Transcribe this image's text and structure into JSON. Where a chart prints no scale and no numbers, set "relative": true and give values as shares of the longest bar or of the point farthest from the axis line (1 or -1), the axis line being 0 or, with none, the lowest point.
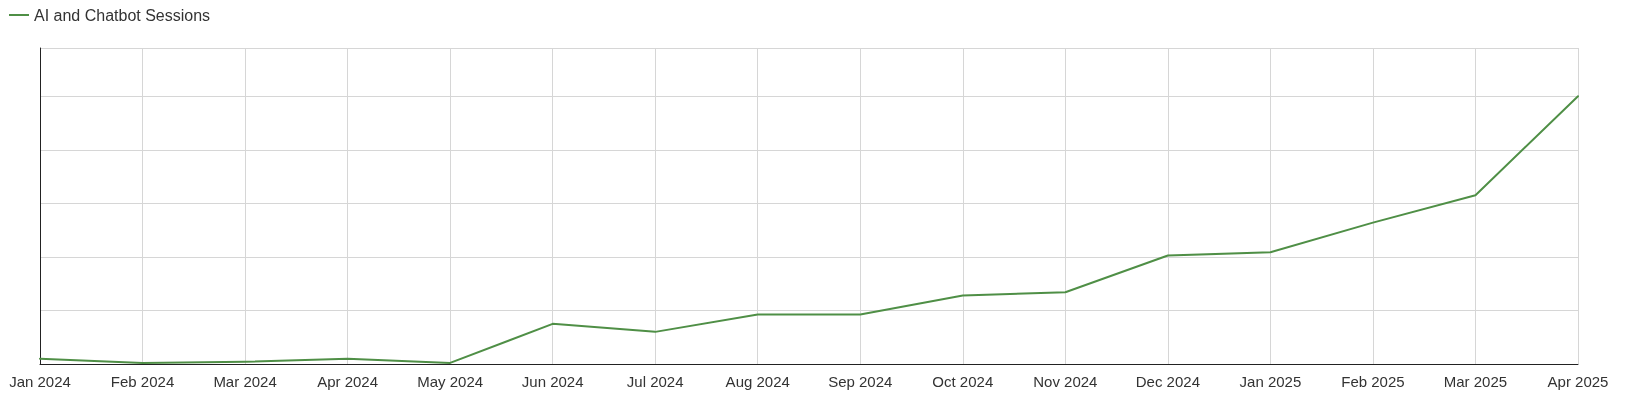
{
  "chart_data": {
    "type": "line",
    "relative": true,
    "grid": true,
    "legend": "top left",
    "marker": "none",
    "line_style": "solid",
    "categories": [
      "Jan 2024",
      "Feb 2024",
      "Mar 2024",
      "Apr 2024",
      "May 2024",
      "Jun 2024",
      "Jul 2024",
      "Aug 2024",
      "Sep 2024",
      "Oct 2024",
      "Nov 2024",
      "Dec 2024",
      "Jan 2025",
      "Feb 2025",
      "Mar 2025",
      "Apr 2025"
    ],
    "series": [
      {
        "name": "AI and Chatbot Sessions",
        "color": "#4f8f46",
        "values": [
          0.02,
          0.004,
          0.008,
          0.02,
          0.004,
          0.15,
          0.12,
          0.185,
          0.185,
          0.256,
          0.268,
          0.405,
          0.417,
          0.528,
          0.63,
          1
        ]
      }
    ]
  }
}
